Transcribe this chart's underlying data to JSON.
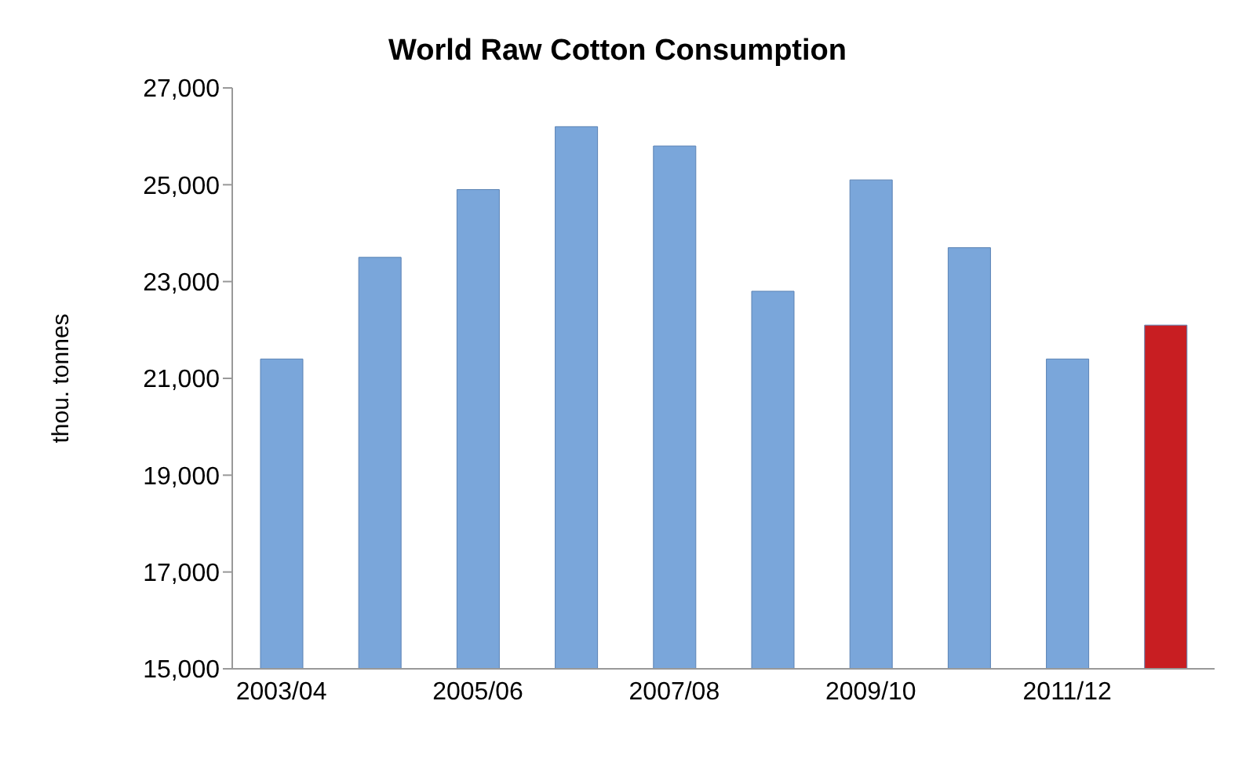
{
  "chart_data": {
    "type": "bar",
    "title": "World Raw Cotton Consumption",
    "ylabel": "thou. tonnes",
    "categories": [
      "2003/04",
      null,
      "2005/06",
      null,
      "2007/08",
      null,
      "2009/10",
      null,
      "2011/12",
      null
    ],
    "values": [
      21400,
      23500,
      24900,
      26200,
      25800,
      22800,
      25100,
      23700,
      21400,
      22100
    ],
    "colors": [
      "#7aa6da",
      "#7aa6da",
      "#7aa6da",
      "#7aa6da",
      "#7aa6da",
      "#7aa6da",
      "#7aa6da",
      "#7aa6da",
      "#7aa6da",
      "#c81e22"
    ],
    "ylim": [
      15000,
      27000
    ],
    "yticks": [
      {
        "value": 15000,
        "label": "15,000"
      },
      {
        "value": 17000,
        "label": "17,000"
      },
      {
        "value": 19000,
        "label": "19,000"
      },
      {
        "value": 21000,
        "label": "21,000"
      },
      {
        "value": 23000,
        "label": "23,000"
      },
      {
        "value": 25000,
        "label": "25,000"
      },
      {
        "value": 27000,
        "label": "27,000"
      }
    ],
    "grid": false,
    "legend": false
  }
}
